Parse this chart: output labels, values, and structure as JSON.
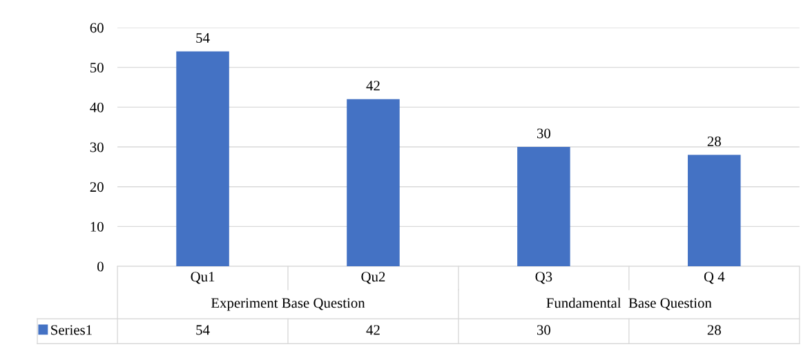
{
  "chart_data": {
    "type": "bar",
    "categories": [
      "Qu1",
      "Qu2",
      "Q3",
      "Q 4"
    ],
    "series": [
      {
        "name": "Series1",
        "color": "#4472c4",
        "values": [
          54,
          42,
          30,
          28
        ],
        "value_labels": [
          "54",
          "42",
          "30",
          "28"
        ]
      }
    ],
    "ylim": [
      0,
      60
    ],
    "yticks": [
      0,
      10,
      20,
      30,
      40,
      50,
      60
    ],
    "grid": "y",
    "legend": "bottom",
    "annotations": [
      "Experiment Base Question",
      "Fundamental  Base Question",
      {
        "text": "54",
        "x": "Qu1",
        "y": 54
      },
      {
        "text": "42",
        "x": "Qu2",
        "y": 42
      },
      {
        "text": "30",
        "x": "Q3",
        "y": 30
      },
      {
        "text": "28",
        "x": "Q 4",
        "y": 28
      }
    ]
  }
}
